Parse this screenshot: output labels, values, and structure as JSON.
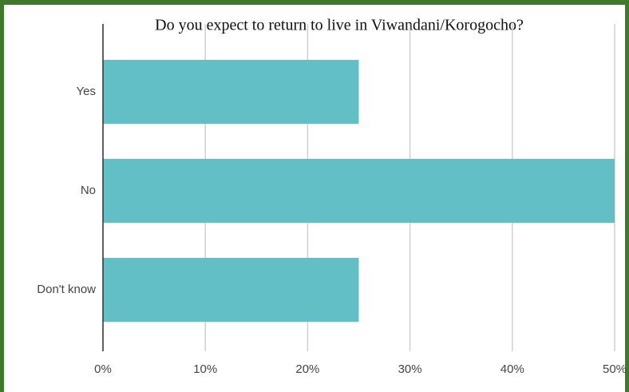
{
  "chart_data": {
    "type": "bar",
    "orientation": "horizontal",
    "title": "Do you expect to return to live in Viwandani/Korogocho?",
    "categories": [
      "Yes",
      "No",
      "Don't know"
    ],
    "values": [
      25,
      50,
      25
    ],
    "color": "#63bfc6",
    "xlim": [
      0,
      50
    ],
    "xticks": [
      {
        "value": 0,
        "label": "0%"
      },
      {
        "value": 10,
        "label": "10%"
      },
      {
        "value": 20,
        "label": "20%"
      },
      {
        "value": 30,
        "label": "30%"
      },
      {
        "value": 40,
        "label": "40%"
      },
      {
        "value": 50,
        "label": "50%"
      }
    ],
    "grid": true
  }
}
